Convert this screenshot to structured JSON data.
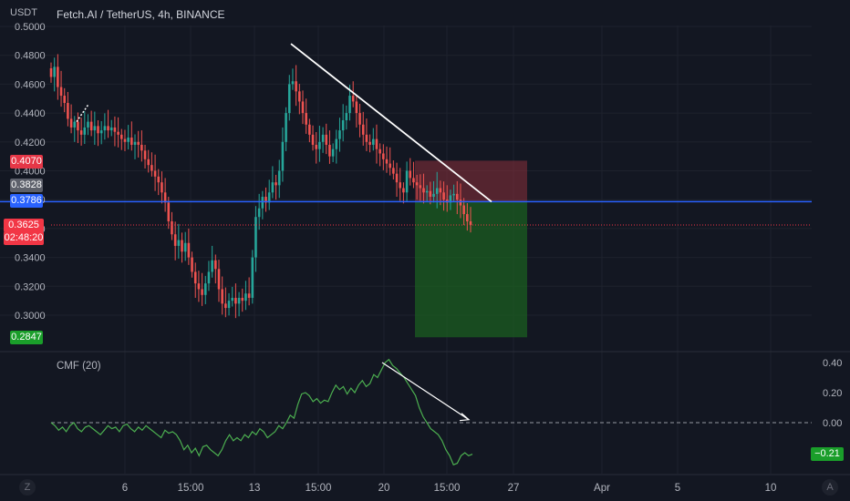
{
  "header": {
    "currency": "USDT",
    "symbol_title": "Fetch.AI / TetherUS, 4h, BINANCE"
  },
  "price_axis": {
    "ticks": [
      "0.5000",
      "0.4800",
      "0.4600",
      "0.4400",
      "0.4200",
      "0.4000",
      "0.3800",
      "0.3600",
      "0.3400",
      "0.3200",
      "0.3000"
    ]
  },
  "badges": {
    "stop": "0.4070",
    "last_close": "0.3828",
    "horizontal_line": "0.3786",
    "current_price": "0.3625",
    "countdown": "02:48:20",
    "target": "0.2847"
  },
  "time_axis": {
    "labels": [
      "6",
      "15:00",
      "13",
      "15:00",
      "20",
      "15:00",
      "27",
      "Apr",
      "5",
      "10"
    ]
  },
  "indicator": {
    "name": "CMF (20)",
    "ticks": [
      "0.40",
      "0.20",
      "0.00"
    ],
    "current_value": "−0.21"
  },
  "corner_buttons": {
    "left": "Z",
    "right": "A"
  },
  "colors": {
    "background": "#131722",
    "up": "#26a69a",
    "down": "#ef5350",
    "line_blue": "#2962ff",
    "cmf_line": "#4caf50",
    "target_zone": "#1b5e20",
    "stop_zone": "#8b2f3a"
  },
  "chart_data": [
    {
      "type": "candlestick",
      "title": "Fetch.AI / TetherUS, 4h, BINANCE",
      "ylim": [
        0.2847,
        0.5
      ],
      "close_series": [
        0.465,
        0.472,
        0.458,
        0.452,
        0.447,
        0.436,
        0.43,
        0.434,
        0.428,
        0.425,
        0.43,
        0.434,
        0.428,
        0.431,
        0.426,
        0.428,
        0.431,
        0.428,
        0.43,
        0.427,
        0.425,
        0.422,
        0.42,
        0.423,
        0.418,
        0.42,
        0.418,
        0.414,
        0.408,
        0.404,
        0.4,
        0.396,
        0.392,
        0.385,
        0.378,
        0.365,
        0.356,
        0.348,
        0.352,
        0.344,
        0.35,
        0.34,
        0.33,
        0.322,
        0.318,
        0.314,
        0.322,
        0.33,
        0.338,
        0.332,
        0.318,
        0.308,
        0.305,
        0.31,
        0.312,
        0.308,
        0.312,
        0.31,
        0.315,
        0.312,
        0.34,
        0.368,
        0.374,
        0.382,
        0.378,
        0.385,
        0.392,
        0.39,
        0.4,
        0.42,
        0.44,
        0.46,
        0.462,
        0.455,
        0.448,
        0.44,
        0.432,
        0.425,
        0.418,
        0.415,
        0.42,
        0.425,
        0.418,
        0.41,
        0.415,
        0.422,
        0.428,
        0.435,
        0.44,
        0.452,
        0.448,
        0.44,
        0.432,
        0.425,
        0.42,
        0.418,
        0.422,
        0.415,
        0.412,
        0.408,
        0.405,
        0.402,
        0.398,
        0.392,
        0.388,
        0.385,
        0.4,
        0.395,
        0.392,
        0.39,
        0.388,
        0.385,
        0.386,
        0.382,
        0.384,
        0.388,
        0.385,
        0.38,
        0.378,
        0.383,
        0.384,
        0.38,
        0.376,
        0.37,
        0.365,
        0.3625
      ],
      "horizontal_level": 0.3786,
      "trendline": {
        "from": 0.488,
        "to": 0.3786
      },
      "position": {
        "entry": 0.3786,
        "stop": 0.407,
        "target": 0.2847
      },
      "x_tick_labels": [
        "6",
        "15:00",
        "13",
        "15:00",
        "20",
        "15:00",
        "27",
        "Apr",
        "5",
        "10"
      ]
    },
    {
      "type": "line",
      "name": "CMF (20)",
      "ylim": [
        -0.3,
        0.45
      ],
      "zero_line": 0.0,
      "values": [
        0.0,
        -0.02,
        -0.05,
        -0.03,
        -0.06,
        -0.02,
        0.0,
        -0.04,
        -0.06,
        -0.03,
        -0.02,
        -0.04,
        -0.06,
        -0.08,
        -0.05,
        -0.02,
        -0.04,
        -0.03,
        -0.06,
        -0.02,
        -0.01,
        -0.04,
        -0.06,
        -0.03,
        -0.05,
        -0.02,
        -0.04,
        -0.06,
        -0.08,
        -0.1,
        -0.05,
        -0.07,
        -0.06,
        -0.08,
        -0.12,
        -0.18,
        -0.15,
        -0.2,
        -0.17,
        -0.22,
        -0.16,
        -0.15,
        -0.18,
        -0.2,
        -0.22,
        -0.18,
        -0.12,
        -0.08,
        -0.12,
        -0.1,
        -0.12,
        -0.08,
        -0.1,
        -0.06,
        -0.08,
        -0.04,
        -0.06,
        -0.1,
        -0.08,
        -0.06,
        -0.02,
        -0.04,
        0.0,
        0.05,
        0.03,
        0.12,
        0.19,
        0.2,
        0.18,
        0.14,
        0.16,
        0.13,
        0.15,
        0.14,
        0.2,
        0.25,
        0.22,
        0.24,
        0.19,
        0.23,
        0.2,
        0.25,
        0.28,
        0.24,
        0.26,
        0.32,
        0.3,
        0.35,
        0.4,
        0.42,
        0.38,
        0.36,
        0.33,
        0.3,
        0.26,
        0.22,
        0.18,
        0.1,
        0.04,
        0.0,
        -0.04,
        -0.06,
        -0.08,
        -0.12,
        -0.18,
        -0.22,
        -0.28,
        -0.27,
        -0.22,
        -0.2,
        -0.22,
        -0.21
      ],
      "arrow": {
        "from": 0.4,
        "to": 0.02
      },
      "last_value": -0.21
    }
  ]
}
